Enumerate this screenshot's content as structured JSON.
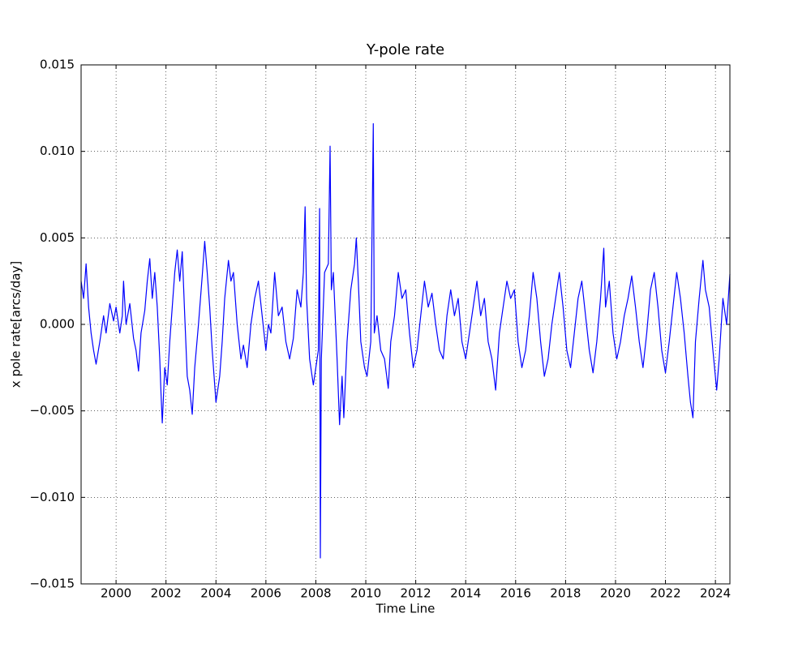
{
  "chart_data": {
    "type": "line",
    "title": "Y-pole rate",
    "xlabel": "Time Line",
    "ylabel": "x pole rate[arcs/day]",
    "x": [
      1998.6,
      1998.7,
      1998.8,
      1998.9,
      1999.0,
      1999.1,
      1999.2,
      1999.35,
      1999.5,
      1999.6,
      1999.75,
      1999.9,
      2000.0,
      2000.15,
      2000.25,
      2000.3,
      2000.4,
      2000.55,
      2000.7,
      2000.8,
      2000.9,
      2001.0,
      2001.15,
      2001.25,
      2001.35,
      2001.45,
      2001.55,
      2001.65,
      2001.75,
      2001.8,
      2001.85,
      2001.95,
      2002.05,
      2002.15,
      2002.25,
      2002.35,
      2002.45,
      2002.55,
      2002.65,
      2002.75,
      2002.85,
      2002.95,
      2003.05,
      2003.15,
      2003.3,
      2003.45,
      2003.55,
      2003.65,
      2003.75,
      2003.85,
      2003.95,
      2004.0,
      2004.15,
      2004.25,
      2004.35,
      2004.5,
      2004.6,
      2004.7,
      2004.85,
      2005.0,
      2005.1,
      2005.25,
      2005.4,
      2005.55,
      2005.7,
      2005.85,
      2006.0,
      2006.1,
      2006.2,
      2006.35,
      2006.5,
      2006.65,
      2006.8,
      2006.95,
      2007.1,
      2007.25,
      2007.4,
      2007.5,
      2007.57,
      2007.63,
      2007.75,
      2007.9,
      2008.0,
      2008.1,
      2008.15,
      2008.18,
      2008.22,
      2008.35,
      2008.5,
      2008.57,
      2008.62,
      2008.7,
      2008.85,
      2008.95,
      2009.05,
      2009.12,
      2009.25,
      2009.4,
      2009.55,
      2009.62,
      2009.7,
      2009.8,
      2009.95,
      2010.05,
      2010.2,
      2010.3,
      2010.34,
      2010.45,
      2010.6,
      2010.75,
      2010.9,
      2011.0,
      2011.15,
      2011.3,
      2011.45,
      2011.6,
      2011.75,
      2011.9,
      2012.05,
      2012.2,
      2012.35,
      2012.5,
      2012.65,
      2012.8,
      2012.95,
      2013.1,
      2013.25,
      2013.4,
      2013.55,
      2013.7,
      2013.85,
      2014.0,
      2014.15,
      2014.3,
      2014.45,
      2014.6,
      2014.75,
      2014.9,
      2015.05,
      2015.2,
      2015.35,
      2015.5,
      2015.65,
      2015.8,
      2015.95,
      2016.1,
      2016.25,
      2016.4,
      2016.55,
      2016.7,
      2016.85,
      2017.0,
      2017.15,
      2017.3,
      2017.45,
      2017.6,
      2017.75,
      2017.9,
      2018.05,
      2018.2,
      2018.35,
      2018.5,
      2018.65,
      2018.8,
      2018.95,
      2019.1,
      2019.25,
      2019.4,
      2019.53,
      2019.6,
      2019.75,
      2019.9,
      2020.05,
      2020.2,
      2020.35,
      2020.5,
      2020.65,
      2020.8,
      2020.95,
      2021.1,
      2021.25,
      2021.4,
      2021.55,
      2021.7,
      2021.85,
      2022.0,
      2022.15,
      2022.3,
      2022.45,
      2022.6,
      2022.75,
      2022.9,
      2023.0,
      2023.1,
      2023.2,
      2023.35,
      2023.5,
      2023.6,
      2023.75,
      2023.9,
      2024.05,
      2024.15,
      2024.3,
      2024.45,
      2024.58
    ],
    "series": [
      {
        "color": "#0000ff",
        "values": [
          0.0025,
          0.0015,
          0.0035,
          0.001,
          -0.0005,
          -0.0015,
          -0.0023,
          -0.001,
          0.0005,
          -0.0005,
          0.0012,
          0.0002,
          0.001,
          -0.0005,
          0.0005,
          0.0025,
          0.0,
          0.0012,
          -0.0008,
          -0.0015,
          -0.0027,
          -0.0005,
          0.0008,
          0.0025,
          0.0038,
          0.0015,
          0.003,
          0.001,
          -0.002,
          -0.004,
          -0.0057,
          -0.0025,
          -0.0035,
          -0.001,
          0.001,
          0.003,
          0.0043,
          0.0025,
          0.0042,
          0.0005,
          -0.003,
          -0.0038,
          -0.0052,
          -0.0025,
          0.0,
          0.0028,
          0.0048,
          0.003,
          0.001,
          -0.0015,
          -0.0035,
          -0.0045,
          -0.003,
          -0.001,
          0.0015,
          0.0037,
          0.0025,
          0.003,
          0.0,
          -0.002,
          -0.0012,
          -0.0025,
          0.0,
          0.0015,
          0.0025,
          0.0005,
          -0.0015,
          0.0,
          -0.0005,
          0.003,
          0.0005,
          0.001,
          -0.001,
          -0.002,
          -0.0008,
          0.002,
          0.001,
          0.003,
          0.0068,
          0.0015,
          -0.002,
          -0.0035,
          -0.0025,
          -0.0015,
          0.0067,
          -0.0135,
          -0.002,
          0.003,
          0.0035,
          0.0103,
          0.002,
          0.003,
          -0.002,
          -0.0058,
          -0.003,
          -0.0054,
          -0.001,
          0.002,
          0.0035,
          0.005,
          0.0025,
          -0.001,
          -0.0025,
          -0.003,
          -0.001,
          0.0116,
          -0.0005,
          0.0005,
          -0.0015,
          -0.002,
          -0.0037,
          -0.001,
          0.0005,
          0.003,
          0.0015,
          0.002,
          -0.0005,
          -0.0025,
          -0.0015,
          0.0005,
          0.0025,
          0.001,
          0.0018,
          0.0,
          -0.0015,
          -0.002,
          0.0005,
          0.002,
          0.0005,
          0.0015,
          -0.001,
          -0.002,
          -0.0005,
          0.001,
          0.0025,
          0.0005,
          0.0015,
          -0.001,
          -0.002,
          -0.0038,
          -0.0005,
          0.001,
          0.0025,
          0.0015,
          0.002,
          -0.001,
          -0.0025,
          -0.0015,
          0.0005,
          0.003,
          0.0015,
          -0.001,
          -0.003,
          -0.002,
          0.0,
          0.0015,
          0.003,
          0.001,
          -0.0015,
          -0.0025,
          -0.0005,
          0.0015,
          0.0025,
          0.0005,
          -0.0015,
          -0.0028,
          -0.001,
          0.0015,
          0.0044,
          0.001,
          0.0025,
          -0.0005,
          -0.002,
          -0.001,
          0.0005,
          0.0015,
          0.0028,
          0.001,
          -0.001,
          -0.0025,
          -0.0005,
          0.002,
          0.003,
          0.001,
          -0.0015,
          -0.0028,
          -0.001,
          0.001,
          0.003,
          0.0015,
          -0.0005,
          -0.003,
          -0.0045,
          -0.0054,
          -0.001,
          0.0015,
          0.0037,
          0.002,
          0.001,
          -0.0015,
          -0.0038,
          -0.002,
          0.0015,
          0.0,
          0.0029
        ]
      }
    ],
    "xlim": [
      1998.6,
      2024.58
    ],
    "xticks": [
      2000,
      2002,
      2004,
      2006,
      2008,
      2010,
      2012,
      2014,
      2016,
      2018,
      2020,
      2022,
      2024
    ],
    "ylim": [
      -0.015,
      0.015
    ],
    "yticks": [
      {
        "value": -0.015,
        "label": "−0.015"
      },
      {
        "value": -0.01,
        "label": "−0.010"
      },
      {
        "value": -0.005,
        "label": "−0.005"
      },
      {
        "value": 0,
        "label": "0.000"
      },
      0.005,
      {
        "value": 0.01,
        "label": "0.010"
      },
      0.015
    ],
    "grid": true
  }
}
